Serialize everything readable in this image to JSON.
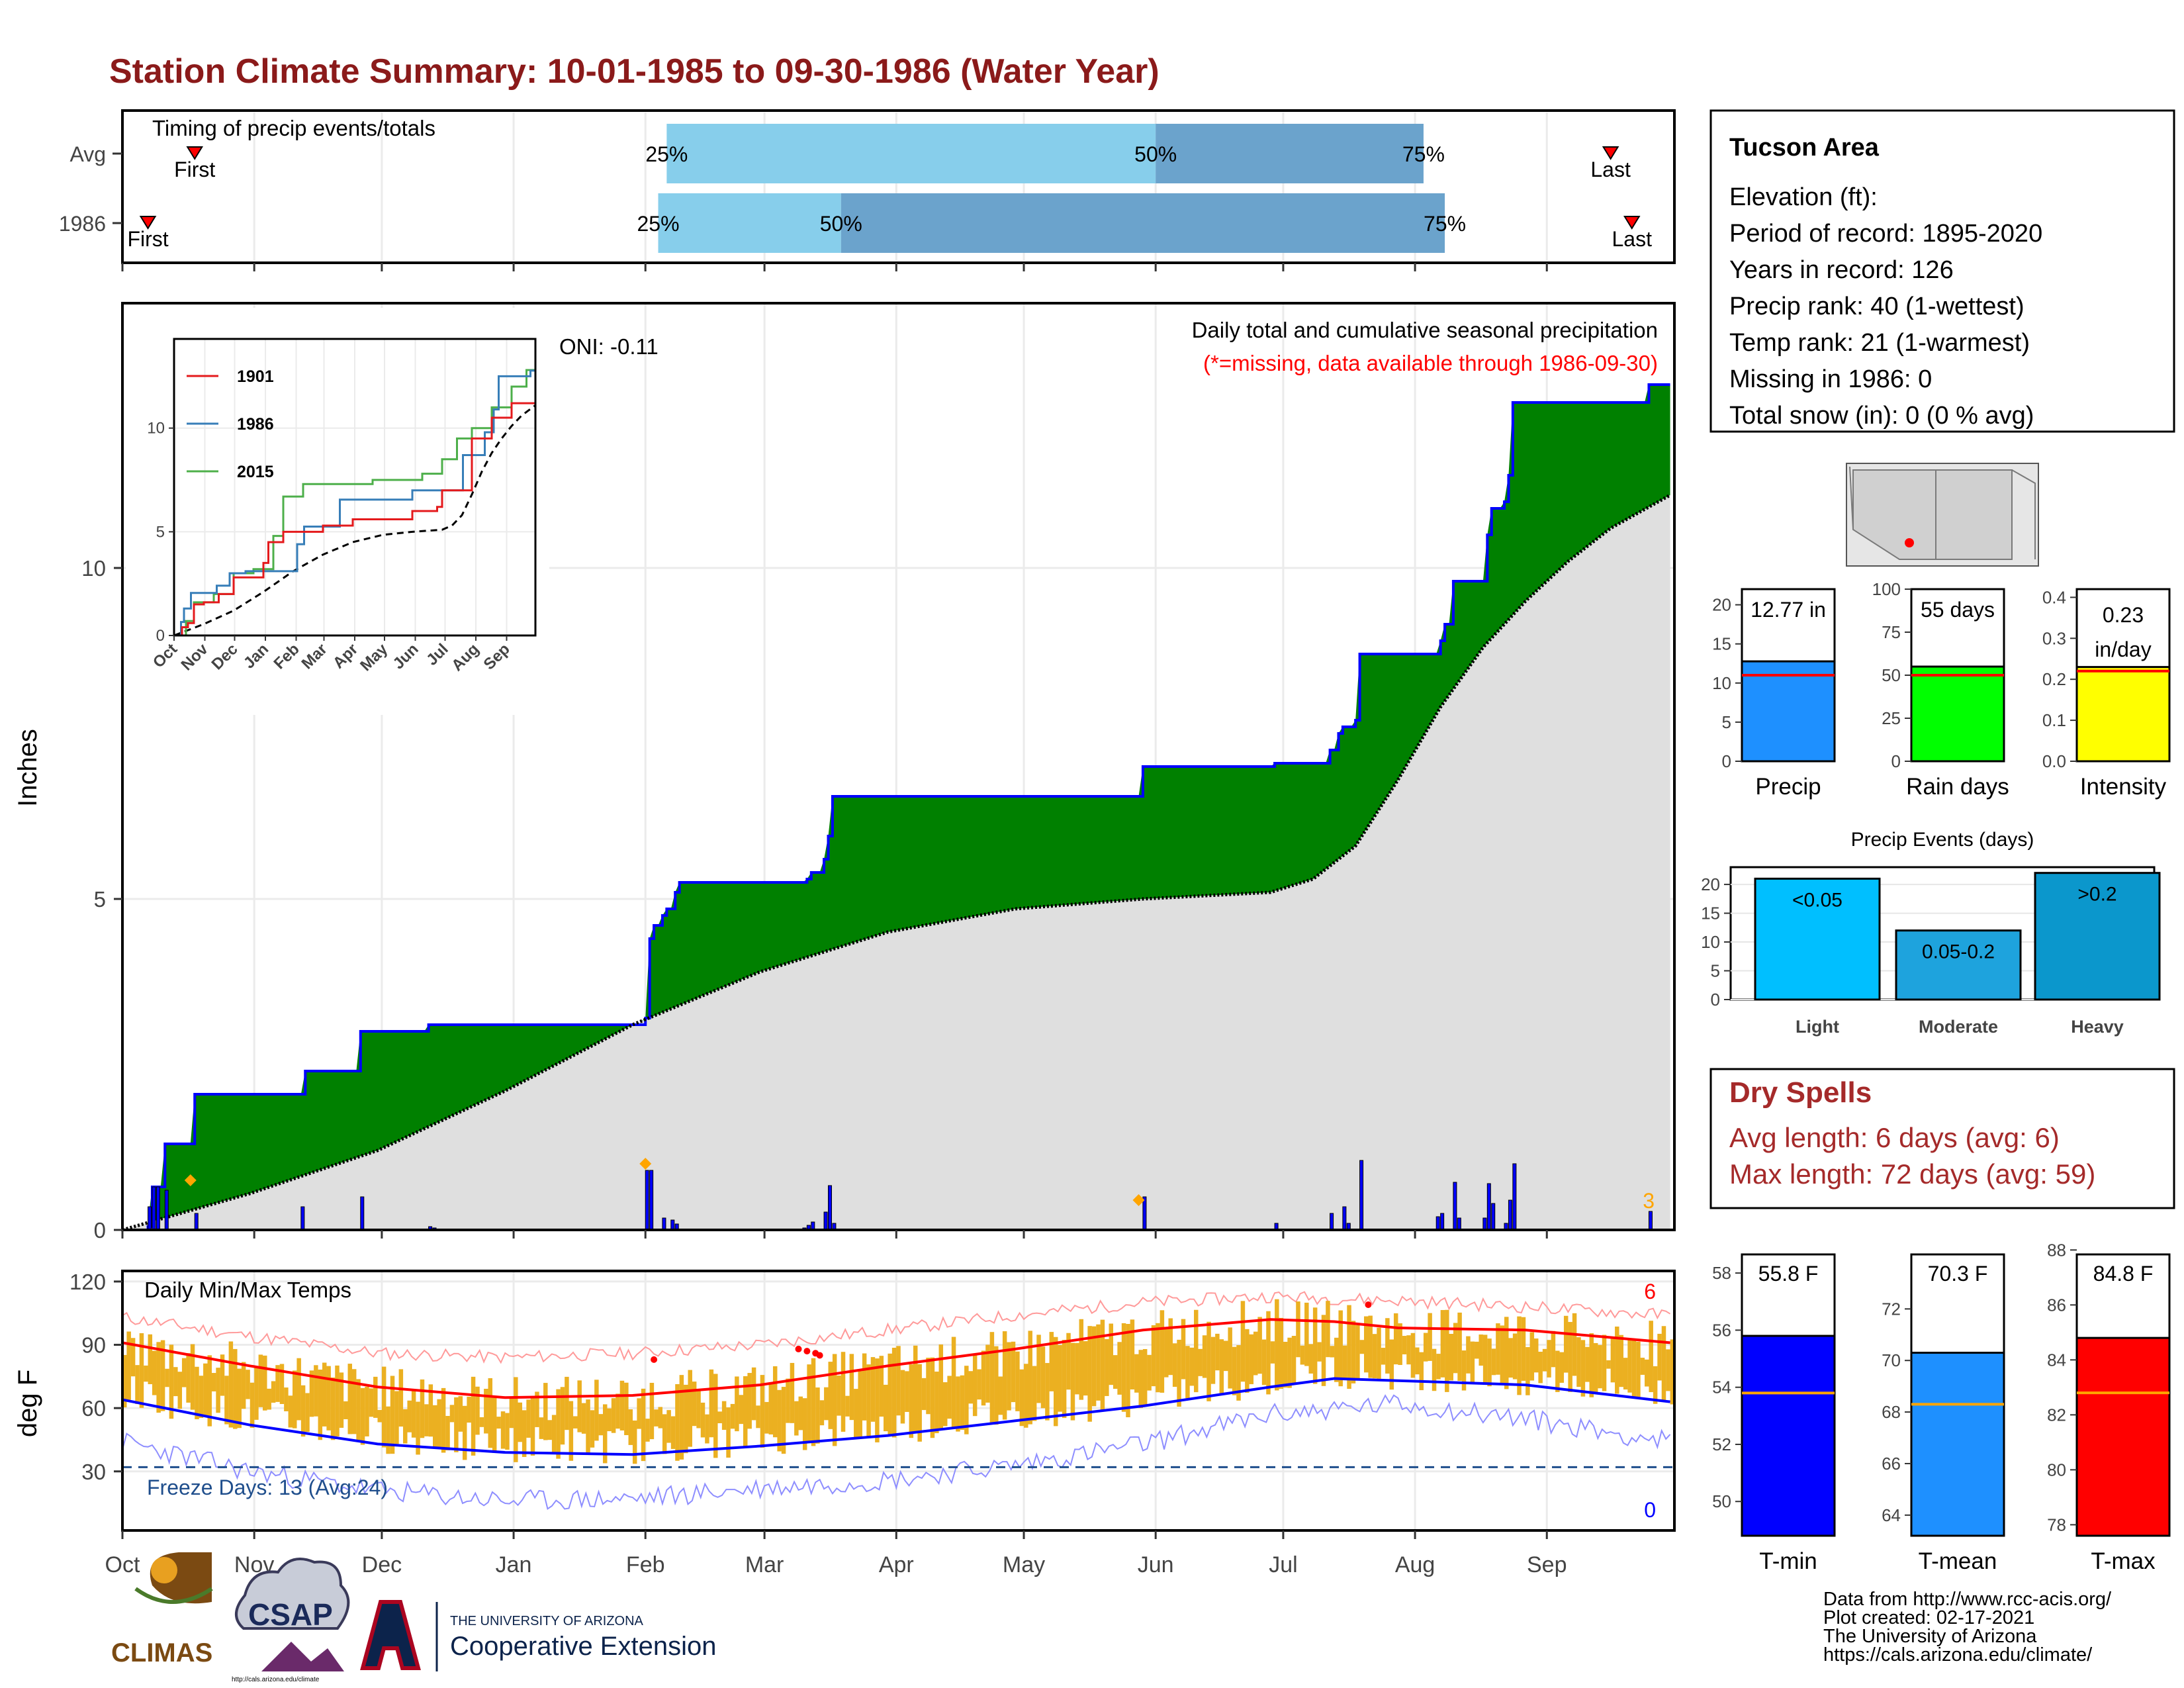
{
  "title": "Station Climate Summary: 10-01-1985 to 09-30-1986 (Water Year)",
  "title_color": "#8B1A1A",
  "colors": {
    "light_blue": "#87CEEB",
    "steel_blue": "#6BA3CC",
    "green": "#008000",
    "blue": "#0000FF",
    "red": "#FF0000",
    "orange": "#FFA500",
    "gold_bar": "#EBB021",
    "grey_fill": "#DFDFDF",
    "precip_bar": "#1E90FF",
    "raindays_bar": "#00FF00",
    "intensity_bar": "#FFFF00",
    "light_events": "#00BFFF",
    "moderate_events": "#1EA3DD",
    "heavy_events": "#0B97CC",
    "dry_spell_text": "#A52A2A",
    "freeze_text": "#1F4E8C"
  },
  "timing_panel": {
    "label": "Timing of precip events/totals",
    "rows": [
      {
        "label": "Avg",
        "first_day": 17,
        "p25_day": 128,
        "p50_day": 243,
        "p75_day": 306,
        "last_day": 350,
        "first_label": "First",
        "last_label": "Last",
        "p25_label": "25%",
        "p50_label": "50%",
        "p75_label": "75%"
      },
      {
        "label": "1986",
        "first_day": 6,
        "p25_day": 126,
        "p50_day": 169,
        "p75_day": 311,
        "last_day": 355,
        "first_label": "First",
        "last_label": "Last",
        "p25_label": "25%",
        "p50_label": "50%",
        "p75_label": "75%"
      }
    ]
  },
  "main_panel": {
    "ylabel": "Inches",
    "header": "Daily total and cumulative seasonal precipitation",
    "subheader": "(*=missing, data available through 1986-09-30)",
    "oni": "ONI: -0.11",
    "corner_count": "3",
    "yticks": [
      "0",
      "5",
      "10"
    ]
  },
  "months": [
    "Oct",
    "Nov",
    "Dec",
    "Jan",
    "Feb",
    "Mar",
    "Apr",
    "May",
    "Jun",
    "Jul",
    "Aug",
    "Sep"
  ],
  "inset": {
    "legend": [
      "1901",
      "1986",
      "2015"
    ],
    "yticks": [
      "0",
      "5",
      "10"
    ]
  },
  "temp_panel": {
    "label": "Daily Min/Max Temps",
    "ylabel": "deg F",
    "freeze": "Freeze Days: 13 (Avg:24)",
    "top_count": "6",
    "bottom_count": "0",
    "yticks": [
      "30",
      "60",
      "90",
      "120"
    ]
  },
  "station_box": {
    "name": "Tucson Area",
    "lines": [
      "Elevation (ft):",
      "Period of record: 1895-2020",
      "Years in record: 126",
      "Precip rank: 40 (1-wettest)",
      "Temp rank: 21 (1-warmest)",
      "Missing in 1986: 0",
      "Total snow (in): 0 (0 % avg)"
    ]
  },
  "mini_bars": [
    {
      "label": "Precip",
      "value_text": "12.77 in",
      "value": 12.77,
      "avg": 11.0,
      "ymax": 22,
      "ticks": [
        "0",
        "5",
        "10",
        "15",
        "20"
      ]
    },
    {
      "label": "Rain days",
      "value_text": "55 days",
      "value": 55,
      "avg": 50,
      "ymax": 100,
      "ticks": [
        "0",
        "25",
        "50",
        "75",
        "100"
      ]
    },
    {
      "label": "Intensity",
      "value_text": "0.23 in/day",
      "value_line1": "0.23",
      "value_line2": "in/day",
      "value": 0.23,
      "avg": 0.22,
      "ymax": 0.42,
      "ticks": [
        "0.0",
        "0.1",
        "0.2",
        "0.3",
        "0.4"
      ]
    }
  ],
  "events": {
    "title": "Precip Events (days)",
    "bars": [
      {
        "label": "Light",
        "text": "<0.05",
        "value": 21
      },
      {
        "label": "Moderate",
        "text": "0.05-0.2",
        "value": 12
      },
      {
        "label": "Heavy",
        "text": ">0.2",
        "value": 22
      }
    ],
    "ticks": [
      "0",
      "5",
      "10",
      "15",
      "20"
    ]
  },
  "dry_spells": {
    "title": "Dry Spells",
    "avg_length": "Avg length: 6 days (avg: 6)",
    "max_length": "Max length: 72 days (avg: 59)"
  },
  "temp_bars": [
    {
      "label": "T-min",
      "value_text": "55.8 F",
      "value": 55.8,
      "avg": 53.8,
      "ymin": 48.8,
      "ymax": 59.0,
      "ticks": [
        "50",
        "52",
        "54",
        "56",
        "58"
      ]
    },
    {
      "label": "T-mean",
      "value_text": "70.3 F",
      "value": 70.3,
      "avg": 68.3,
      "ymin": 63.2,
      "ymax": 74.5,
      "ticks": [
        "64",
        "66",
        "68",
        "70",
        "72"
      ]
    },
    {
      "label": "T-max",
      "value_text": "84.8 F",
      "value": 84.8,
      "avg": 82.8,
      "ymin": 77.6,
      "ymax": 88.2,
      "ticks": [
        "78",
        "80",
        "82",
        "84",
        "86",
        "88"
      ]
    }
  ],
  "credits": [
    "Data from http://www.rcc-acis.org/",
    "Plot created: 02-17-2021",
    "The University of Arizona",
    "https://cals.arizona.edu/climate/"
  ],
  "logos": {
    "climas": "CLIMAS",
    "csap": "CSAP",
    "csap_url": "http://cals.arizona.edu/climate",
    "ua_small": "THE UNIVERSITY OF ARIZONA",
    "ua_big": "Cooperative Extension"
  },
  "chart_data": {
    "type": "area",
    "title": "Station Climate Summary: 10-01-1985 to 09-30-1986 (Water Year)",
    "ylabel": "Inches",
    "ylim": [
      0,
      14
    ],
    "x_unit": "day of water year (Oct 1 = 0)",
    "cumulative_1986": [
      [
        0,
        0
      ],
      [
        6,
        0.05
      ],
      [
        7,
        0.65
      ],
      [
        9,
        0.65
      ],
      [
        10,
        1.3
      ],
      [
        16,
        1.3
      ],
      [
        17,
        2.05
      ],
      [
        42,
        2.05
      ],
      [
        43,
        2.4
      ],
      [
        55,
        2.4
      ],
      [
        56,
        3.0
      ],
      [
        71,
        3.0
      ],
      [
        72,
        3.1
      ],
      [
        122,
        3.1
      ],
      [
        123,
        3.2
      ],
      [
        124,
        4.4
      ],
      [
        125,
        4.6
      ],
      [
        127,
        4.75
      ],
      [
        128,
        4.85
      ],
      [
        130,
        5.1
      ],
      [
        131,
        5.25
      ],
      [
        160,
        5.25
      ],
      [
        161,
        5.3
      ],
      [
        162,
        5.4
      ],
      [
        165,
        5.6
      ],
      [
        166,
        5.95
      ],
      [
        167,
        6.55
      ],
      [
        239,
        6.55
      ],
      [
        240,
        7.0
      ],
      [
        270,
        7.0
      ],
      [
        271,
        7.05
      ],
      [
        283,
        7.05
      ],
      [
        284,
        7.25
      ],
      [
        286,
        7.5
      ],
      [
        287,
        7.6
      ],
      [
        290,
        7.7
      ],
      [
        291,
        8.7
      ],
      [
        309,
        8.7
      ],
      [
        310,
        8.9
      ],
      [
        311,
        9.15
      ],
      [
        313,
        9.8
      ],
      [
        320,
        9.8
      ],
      [
        321,
        10.5
      ],
      [
        322,
        10.9
      ],
      [
        325,
        11.0
      ],
      [
        326,
        11.4
      ],
      [
        327,
        12.5
      ],
      [
        358,
        12.5
      ],
      [
        359,
        12.77
      ],
      [
        364,
        12.77
      ]
    ],
    "avg_cumulative": [
      [
        0,
        0
      ],
      [
        30,
        0.55
      ],
      [
        60,
        1.2
      ],
      [
        90,
        2.1
      ],
      [
        120,
        3.1
      ],
      [
        150,
        3.9
      ],
      [
        180,
        4.5
      ],
      [
        210,
        4.85
      ],
      [
        240,
        5.0
      ],
      [
        270,
        5.1
      ],
      [
        280,
        5.3
      ],
      [
        290,
        5.8
      ],
      [
        300,
        6.8
      ],
      [
        310,
        7.9
      ],
      [
        320,
        8.8
      ],
      [
        330,
        9.5
      ],
      [
        340,
        10.1
      ],
      [
        350,
        10.6
      ],
      [
        364,
        11.1
      ]
    ],
    "daily_precip": [
      [
        6,
        0.35
      ],
      [
        7,
        0.65
      ],
      [
        8,
        0.65
      ],
      [
        10,
        0.6
      ],
      [
        17,
        0.25
      ],
      [
        42,
        0.35
      ],
      [
        56,
        0.5
      ],
      [
        72,
        0.05
      ],
      [
        73,
        0.03
      ],
      [
        123,
        0.9
      ],
      [
        124,
        0.9
      ],
      [
        127,
        0.18
      ],
      [
        129,
        0.15
      ],
      [
        130,
        0.09
      ],
      [
        160,
        0.03
      ],
      [
        161,
        0.07
      ],
      [
        162,
        0.12
      ],
      [
        165,
        0.27
      ],
      [
        166,
        0.67
      ],
      [
        167,
        0.1
      ],
      [
        240,
        0.5
      ],
      [
        271,
        0.1
      ],
      [
        284,
        0.25
      ],
      [
        287,
        0.35
      ],
      [
        288,
        0.1
      ],
      [
        291,
        1.05
      ],
      [
        309,
        0.2
      ],
      [
        310,
        0.25
      ],
      [
        313,
        0.72
      ],
      [
        314,
        0.18
      ],
      [
        320,
        0.18
      ],
      [
        321,
        0.7
      ],
      [
        322,
        0.4
      ],
      [
        325,
        0.1
      ],
      [
        326,
        0.45
      ],
      [
        327,
        1.0
      ],
      [
        359,
        0.28
      ]
    ],
    "missing_markers": [
      [
        16,
        0.75
      ],
      [
        123,
        1.0
      ],
      [
        239,
        0.45
      ]
    ],
    "inset_series": {
      "1901": [
        [
          0,
          0
        ],
        [
          8,
          0.4
        ],
        [
          14,
          0.6
        ],
        [
          20,
          1.5
        ],
        [
          30,
          1.6
        ],
        [
          45,
          2.0
        ],
        [
          60,
          2.8
        ],
        [
          90,
          3.5
        ],
        [
          95,
          4.5
        ],
        [
          110,
          5.0
        ],
        [
          150,
          5.3
        ],
        [
          180,
          5.6
        ],
        [
          240,
          6.0
        ],
        [
          265,
          6.2
        ],
        [
          270,
          7.0
        ],
        [
          300,
          9.5
        ],
        [
          320,
          10.5
        ],
        [
          340,
          11.2
        ],
        [
          364,
          11.6
        ]
      ],
      "1986": [
        [
          0,
          0
        ],
        [
          7,
          0.65
        ],
        [
          10,
          1.3
        ],
        [
          17,
          2.05
        ],
        [
          43,
          2.4
        ],
        [
          56,
          3.0
        ],
        [
          72,
          3.1
        ],
        [
          124,
          4.4
        ],
        [
          131,
          5.25
        ],
        [
          167,
          6.55
        ],
        [
          240,
          7.0
        ],
        [
          291,
          8.7
        ],
        [
          313,
          9.8
        ],
        [
          322,
          10.9
        ],
        [
          327,
          12.5
        ],
        [
          359,
          12.77
        ]
      ],
      "2015": [
        [
          0,
          0
        ],
        [
          12,
          0.7
        ],
        [
          20,
          1.6
        ],
        [
          40,
          2.0
        ],
        [
          60,
          3.0
        ],
        [
          80,
          3.2
        ],
        [
          100,
          4.8
        ],
        [
          110,
          6.7
        ],
        [
          130,
          7.3
        ],
        [
          160,
          7.3
        ],
        [
          200,
          7.5
        ],
        [
          250,
          7.8
        ],
        [
          270,
          8.5
        ],
        [
          285,
          9.5
        ],
        [
          300,
          10.0
        ],
        [
          320,
          11.0
        ],
        [
          340,
          12.0
        ],
        [
          355,
          12.8
        ],
        [
          364,
          14.2
        ]
      ],
      "avg": [
        [
          0,
          0
        ],
        [
          30,
          0.55
        ],
        [
          60,
          1.2
        ],
        [
          90,
          2.1
        ],
        [
          120,
          3.1
        ],
        [
          150,
          3.9
        ],
        [
          180,
          4.5
        ],
        [
          210,
          4.85
        ],
        [
          240,
          5.0
        ],
        [
          270,
          5.1
        ],
        [
          280,
          5.3
        ],
        [
          290,
          5.8
        ],
        [
          300,
          6.8
        ],
        [
          310,
          7.9
        ],
        [
          320,
          8.8
        ],
        [
          330,
          9.5
        ],
        [
          340,
          10.1
        ],
        [
          350,
          10.6
        ],
        [
          364,
          11.1
        ]
      ]
    },
    "temp_normals_max": [
      [
        0,
        91
      ],
      [
        30,
        80
      ],
      [
        60,
        70
      ],
      [
        90,
        65
      ],
      [
        120,
        66
      ],
      [
        150,
        71
      ],
      [
        180,
        80
      ],
      [
        210,
        88
      ],
      [
        240,
        97
      ],
      [
        270,
        102
      ],
      [
        285,
        101
      ],
      [
        300,
        98
      ],
      [
        330,
        97
      ],
      [
        364,
        91
      ]
    ],
    "temp_normals_min": [
      [
        0,
        64
      ],
      [
        30,
        52
      ],
      [
        60,
        43
      ],
      [
        90,
        39
      ],
      [
        120,
        38
      ],
      [
        150,
        42
      ],
      [
        180,
        47
      ],
      [
        210,
        54
      ],
      [
        240,
        61
      ],
      [
        270,
        70
      ],
      [
        285,
        74
      ],
      [
        300,
        73
      ],
      [
        330,
        71
      ],
      [
        364,
        63
      ]
    ],
    "record_max": [
      [
        0,
        103
      ],
      [
        30,
        94
      ],
      [
        60,
        86
      ],
      [
        90,
        84
      ],
      [
        120,
        86
      ],
      [
        150,
        90
      ],
      [
        180,
        97
      ],
      [
        210,
        104
      ],
      [
        240,
        110
      ],
      [
        270,
        113
      ],
      [
        300,
        111
      ],
      [
        330,
        108
      ],
      [
        364,
        104
      ]
    ],
    "record_min": [
      [
        0,
        44
      ],
      [
        30,
        30
      ],
      [
        60,
        21
      ],
      [
        90,
        16
      ],
      [
        120,
        17
      ],
      [
        150,
        22
      ],
      [
        180,
        26
      ],
      [
        210,
        33
      ],
      [
        240,
        43
      ],
      [
        270,
        57
      ],
      [
        300,
        62
      ],
      [
        330,
        55
      ],
      [
        364,
        44
      ]
    ]
  }
}
